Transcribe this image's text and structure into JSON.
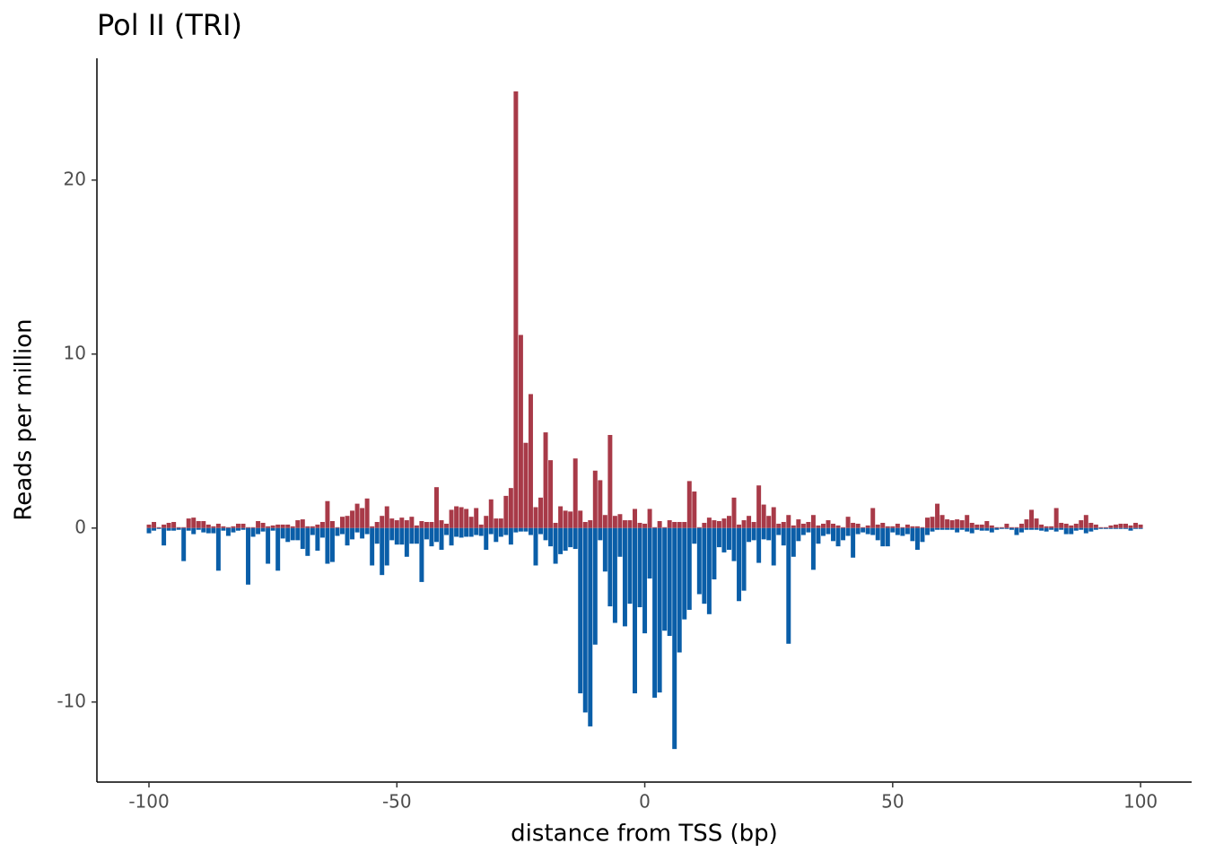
{
  "chart_data": {
    "type": "bar",
    "title": "Pol II (TRI)",
    "x_label": "distance from TSS (bp)",
    "y_label": "Reads per million",
    "x": [
      -100,
      -99,
      -98,
      -97,
      -96,
      -95,
      -94,
      -93,
      -92,
      -91,
      -90,
      -89,
      -88,
      -87,
      -86,
      -85,
      -84,
      -83,
      -82,
      -81,
      -80,
      -79,
      -78,
      -77,
      -76,
      -75,
      -74,
      -73,
      -72,
      -71,
      -70,
      -69,
      -68,
      -67,
      -66,
      -65,
      -64,
      -63,
      -62,
      -61,
      -60,
      -59,
      -58,
      -57,
      -56,
      -55,
      -54,
      -53,
      -52,
      -51,
      -50,
      -49,
      -48,
      -47,
      -46,
      -45,
      -44,
      -43,
      -42,
      -41,
      -40,
      -39,
      -38,
      -37,
      -36,
      -35,
      -34,
      -33,
      -32,
      -31,
      -30,
      -29,
      -28,
      -27,
      -26,
      -25,
      -24,
      -23,
      -22,
      -21,
      -20,
      -19,
      -18,
      -17,
      -16,
      -15,
      -14,
      -13,
      -12,
      -11,
      -10,
      -9,
      -8,
      -7,
      -6,
      -5,
      -4,
      -3,
      -2,
      -1,
      0,
      1,
      2,
      3,
      4,
      5,
      6,
      7,
      8,
      9,
      10,
      11,
      12,
      13,
      14,
      15,
      16,
      17,
      18,
      19,
      20,
      21,
      22,
      23,
      24,
      25,
      26,
      27,
      28,
      29,
      30,
      31,
      32,
      33,
      34,
      35,
      36,
      37,
      38,
      39,
      40,
      41,
      42,
      43,
      44,
      45,
      46,
      47,
      48,
      49,
      50,
      51,
      52,
      53,
      54,
      55,
      56,
      57,
      58,
      59,
      60,
      61,
      62,
      63,
      64,
      65,
      66,
      67,
      68,
      69,
      70,
      71,
      72,
      73,
      74,
      75,
      76,
      77,
      78,
      79,
      80,
      81,
      82,
      83,
      84,
      85,
      86,
      87,
      88,
      89,
      90,
      91,
      92,
      93,
      94,
      95,
      96,
      97,
      98,
      99,
      100
    ],
    "series": [
      {
        "color": "#a83a48",
        "values": [
          0.2,
          0.35,
          0.05,
          0.2,
          0.3,
          0.35,
          0.05,
          0.05,
          0.55,
          0.6,
          0.4,
          0.4,
          0.2,
          0.1,
          0.25,
          0.1,
          0.05,
          0.1,
          0.25,
          0.25,
          0.05,
          0.05,
          0.4,
          0.3,
          0.1,
          0.15,
          0.2,
          0.2,
          0.2,
          0.1,
          0.45,
          0.5,
          0.1,
          0.1,
          0.2,
          0.35,
          1.55,
          0.4,
          0.05,
          0.65,
          0.7,
          1.0,
          1.4,
          1.15,
          1.7,
          0.1,
          0.35,
          0.7,
          1.25,
          0.55,
          0.45,
          0.6,
          0.45,
          0.65,
          0.15,
          0.4,
          0.35,
          0.35,
          2.35,
          0.45,
          0.25,
          1.05,
          1.25,
          1.2,
          1.1,
          0.65,
          1.15,
          0.2,
          0.7,
          1.65,
          0.55,
          0.55,
          1.85,
          2.3,
          25.1,
          11.1,
          4.9,
          7.7,
          1.2,
          1.75,
          5.5,
          3.9,
          0.3,
          1.25,
          1.0,
          0.95,
          4.0,
          1.0,
          0.35,
          0.45,
          3.3,
          2.75,
          0.75,
          5.35,
          0.7,
          0.8,
          0.45,
          0.45,
          1.1,
          0.3,
          0.25,
          1.1,
          0.05,
          0.4,
          0.05,
          0.45,
          0.35,
          0.35,
          0.35,
          2.7,
          2.1,
          0.05,
          0.3,
          0.6,
          0.45,
          0.4,
          0.55,
          0.7,
          1.75,
          0.2,
          0.45,
          0.7,
          0.35,
          2.45,
          1.35,
          0.7,
          1.2,
          0.25,
          0.35,
          0.75,
          0.15,
          0.5,
          0.25,
          0.35,
          0.75,
          0.15,
          0.25,
          0.45,
          0.25,
          0.15,
          0.05,
          0.65,
          0.3,
          0.25,
          0.05,
          0.15,
          1.15,
          0.2,
          0.3,
          0.1,
          0.1,
          0.25,
          0.05,
          0.2,
          0.1,
          0.1,
          0.05,
          0.6,
          0.65,
          1.4,
          0.75,
          0.5,
          0.45,
          0.5,
          0.45,
          0.75,
          0.3,
          0.2,
          0.2,
          0.4,
          0.15,
          0.05,
          0.05,
          0.25,
          0.05,
          0.05,
          0.25,
          0.5,
          1.05,
          0.55,
          0.2,
          0.1,
          0.1,
          1.15,
          0.3,
          0.25,
          0.15,
          0.25,
          0.45,
          0.75,
          0.3,
          0.2,
          0.05,
          0.05,
          0.15,
          0.2,
          0.25,
          0.25,
          0.15,
          0.3,
          0.2
        ]
      },
      {
        "color": "#0a5ea8",
        "values": [
          -0.3,
          -0.15,
          -0.05,
          -1.0,
          -0.15,
          -0.15,
          -0.1,
          -1.9,
          -0.15,
          -0.35,
          -0.1,
          -0.25,
          -0.3,
          -0.3,
          -2.45,
          -0.15,
          -0.45,
          -0.25,
          -0.15,
          -0.1,
          -3.25,
          -0.5,
          -0.35,
          -0.2,
          -2.05,
          -0.15,
          -2.45,
          -0.6,
          -0.8,
          -0.7,
          -0.7,
          -1.2,
          -1.6,
          -0.4,
          -1.3,
          -0.55,
          -2.05,
          -1.95,
          -0.45,
          -0.35,
          -1.0,
          -0.65,
          -0.25,
          -0.6,
          -0.35,
          -2.15,
          -0.9,
          -2.7,
          -2.15,
          -0.7,
          -0.95,
          -0.95,
          -1.65,
          -0.9,
          -0.9,
          -3.1,
          -0.65,
          -1.05,
          -0.8,
          -1.25,
          -0.4,
          -1.0,
          -0.5,
          -0.55,
          -0.5,
          -0.5,
          -0.4,
          -0.45,
          -1.25,
          -0.35,
          -0.8,
          -0.5,
          -0.4,
          -0.95,
          -0.25,
          -0.2,
          -0.2,
          -0.4,
          -2.15,
          -0.35,
          -0.7,
          -1.05,
          -2.05,
          -1.5,
          -1.3,
          -1.1,
          -1.2,
          -9.5,
          -10.6,
          -11.4,
          -6.7,
          -0.7,
          -2.5,
          -4.5,
          -5.45,
          -1.65,
          -5.65,
          -4.35,
          -9.5,
          -4.55,
          -6.05,
          -2.9,
          -9.75,
          -9.45,
          -5.9,
          -6.2,
          -12.7,
          -7.15,
          -5.25,
          -4.7,
          -0.9,
          -3.8,
          -4.35,
          -4.95,
          -2.95,
          -1.1,
          -1.4,
          -1.25,
          -1.9,
          -4.2,
          -3.6,
          -0.8,
          -0.7,
          -2.0,
          -0.65,
          -0.7,
          -2.15,
          -0.4,
          -1.0,
          -6.65,
          -1.65,
          -0.75,
          -0.4,
          -0.25,
          -2.4,
          -0.9,
          -0.45,
          -0.35,
          -0.75,
          -1.05,
          -0.7,
          -0.45,
          -1.7,
          -0.35,
          -0.25,
          -0.35,
          -0.4,
          -0.7,
          -1.05,
          -1.05,
          -0.25,
          -0.4,
          -0.45,
          -0.35,
          -0.75,
          -1.25,
          -0.8,
          -0.4,
          -0.2,
          -0.1,
          -0.1,
          -0.1,
          -0.1,
          -0.25,
          -0.1,
          -0.2,
          -0.3,
          -0.1,
          -0.15,
          -0.15,
          -0.25,
          -0.1,
          -0.05,
          -0.05,
          -0.1,
          -0.4,
          -0.25,
          -0.1,
          -0.1,
          -0.1,
          -0.15,
          -0.2,
          -0.1,
          -0.2,
          -0.1,
          -0.35,
          -0.35,
          -0.15,
          -0.1,
          -0.3,
          -0.2,
          -0.1,
          -0.05,
          -0.05,
          -0.05,
          -0.05,
          -0.05,
          -0.05,
          -0.15,
          -0.05,
          -0.05
        ]
      }
    ],
    "xlim": [
      -110.5,
      110.3
    ],
    "ylim": [
      -14.6,
      27.0
    ],
    "xticks": [
      -100,
      -50,
      0,
      50,
      100
    ],
    "yticks": [
      -10,
      0,
      10,
      20
    ]
  }
}
